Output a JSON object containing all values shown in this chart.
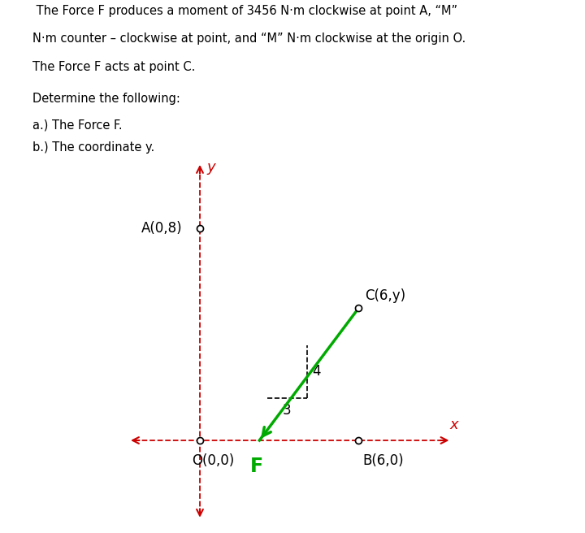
{
  "text_line1": " The Force F produces a moment of 3456 N·m clockwise at point A, “M”",
  "text_line2": "N·m counter – clockwise at point, and “M” N·m clockwise at the origin O.",
  "text_line3": "The Force F acts at point C.",
  "text_line4": "Determine the following:",
  "text_line5": "a.) The Force F.",
  "text_line6": "b.) The coordinate y.",
  "bg_color": "#ffffff",
  "axis_color": "#cc0000",
  "dashed_color": "#cc0000",
  "green_color": "#00aa00",
  "black_color": "#000000",
  "O": [
    0,
    0
  ],
  "A": [
    0,
    8
  ],
  "B": [
    6,
    0
  ],
  "C": [
    6,
    5
  ],
  "force_direction": [
    -3,
    -4
  ],
  "axis_xlim": [
    -3,
    10
  ],
  "axis_ylim": [
    -3.5,
    11
  ]
}
